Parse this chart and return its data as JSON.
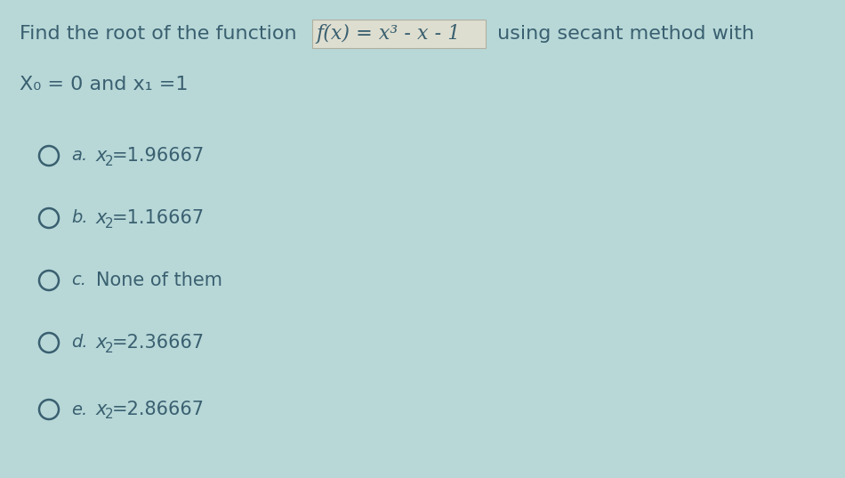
{
  "background_color": "#b8d8d8",
  "text_color": "#3a6070",
  "title_part1": "Find the root of the function ",
  "title_formula": "f(x) = x³ - x - 1",
  "title_part2": " using secant method with",
  "line2": "X₀ = 0 and x₁ =1",
  "options": [
    {
      "label": "a.",
      "value": "x₂=1.96667"
    },
    {
      "label": "b.",
      "value": "x₂=1.16667"
    },
    {
      "label": "c.",
      "value": "None of them"
    },
    {
      "label": "d.",
      "value": "x₂=2.36667"
    },
    {
      "label": "e.",
      "value": "x₂=2.86667"
    }
  ],
  "formula_bg": "#deded0",
  "formula_border": "#b0b0a0",
  "font_size_main": 16,
  "font_size_options": 15,
  "font_size_label": 14,
  "font_size_sub": 11
}
